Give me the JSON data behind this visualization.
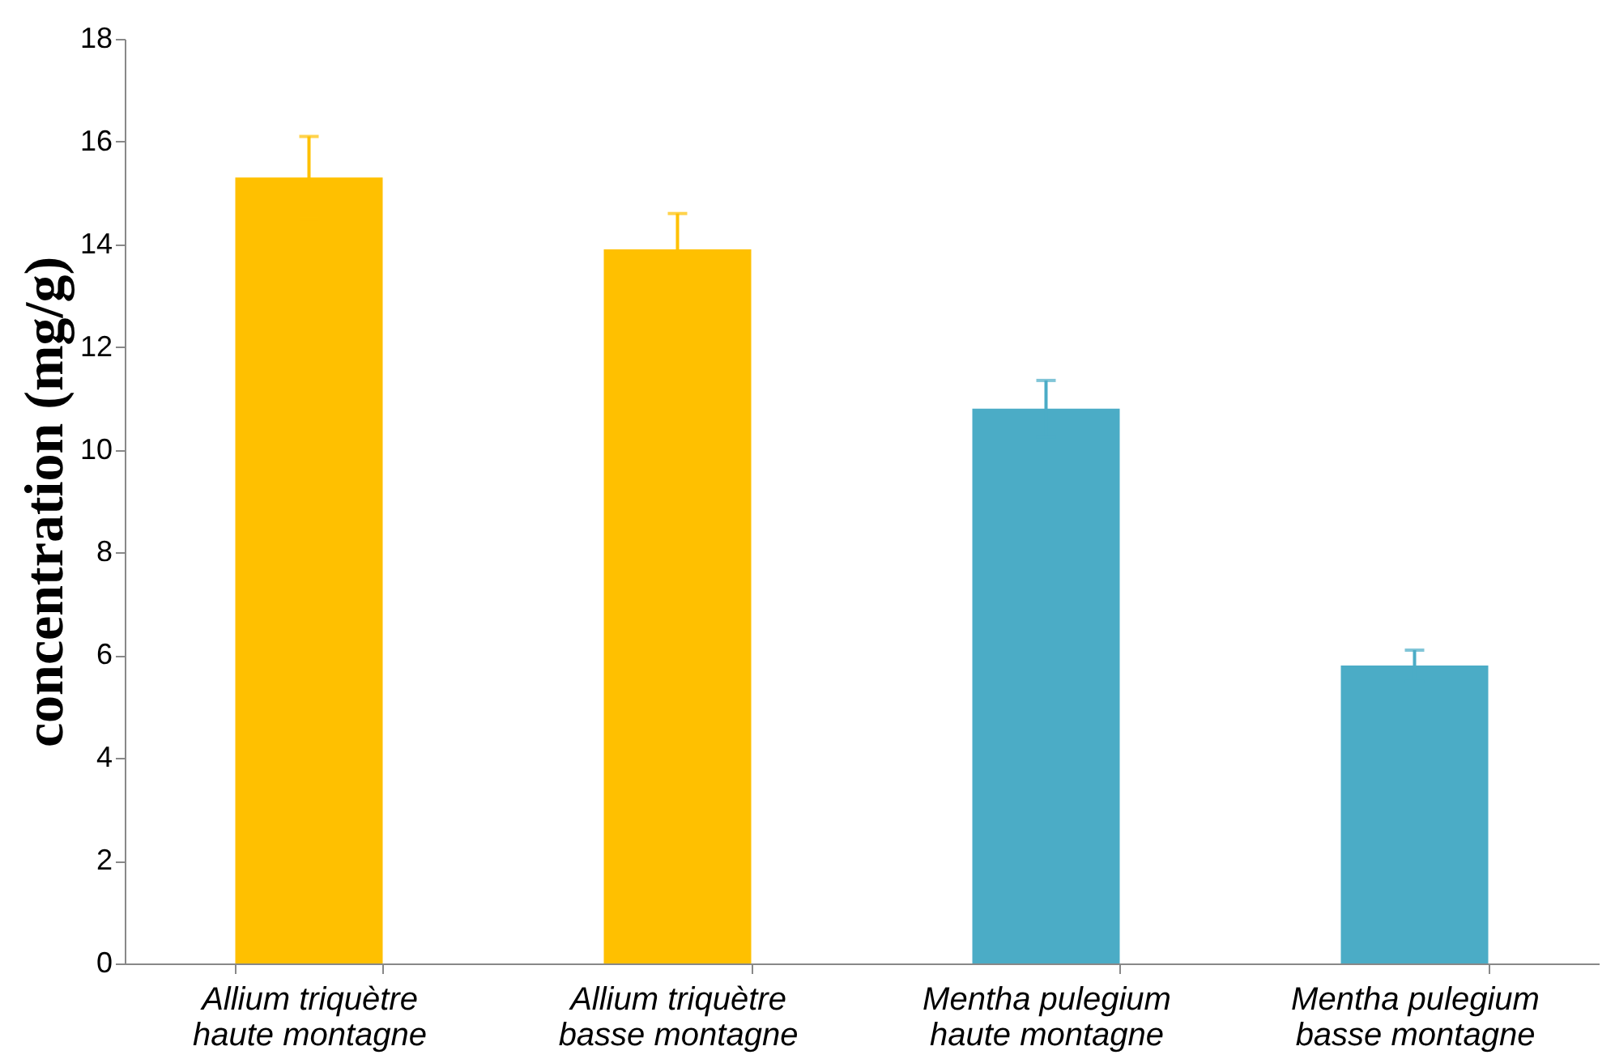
{
  "chart_data": {
    "type": "bar",
    "ylabel": "concentration (mg/g)",
    "categories": [
      "Allium triquètre\nhaute montagne",
      "Allium triquètre\nbasse montagne",
      "Mentha pulegium\nhaute montagne",
      "Mentha pulegium\nbasse montagne"
    ],
    "values": [
      15.3,
      13.9,
      10.8,
      5.8
    ],
    "colors": [
      "#ffc000",
      "#ffc000",
      "#4bacc6",
      "#4bacc6"
    ],
    "errors": [
      0.8,
      0.7,
      0.55,
      0.3
    ],
    "ylim": [
      0,
      18
    ],
    "yticks": [
      0,
      2,
      4,
      6,
      8,
      10,
      12,
      14,
      16,
      18
    ],
    "grid": false
  }
}
